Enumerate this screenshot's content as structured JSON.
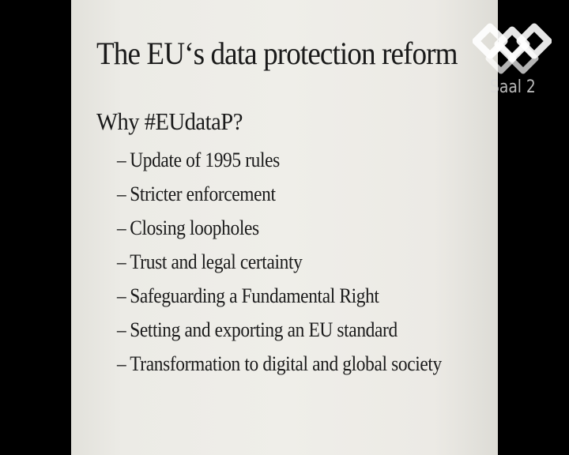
{
  "slide": {
    "title": "The EU‘s data protection reform",
    "section_heading": "Why #EUdataP?",
    "bullet_dash": "–",
    "bullets": [
      "Update of 1995 rules",
      "Stricter enforcement",
      "Closing loopholes",
      "Trust and legal certainty",
      "Safeguarding a Fundamental Right",
      "Setting and exporting an EU standard",
      "Transformation to digital and global society"
    ]
  },
  "overlay": {
    "logo_icon": "channel-logo-icon",
    "channel_label": "Saal 2"
  }
}
